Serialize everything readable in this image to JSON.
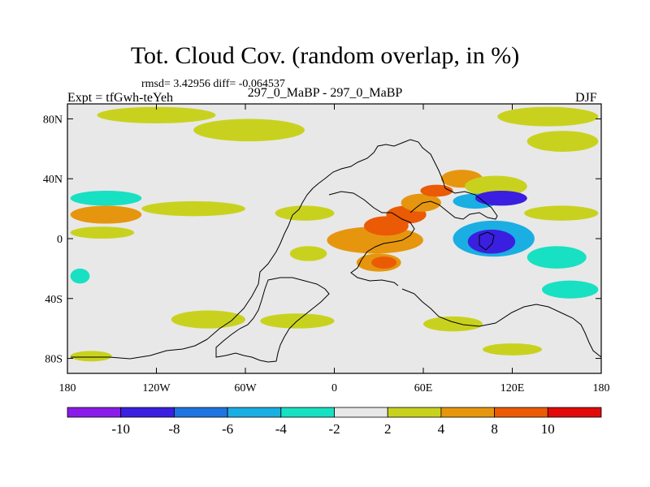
{
  "figure": {
    "title": "Tot. Cloud Cov. (random overlap, in %)",
    "stats": "rmsd= 3.42956 diff= -0.064537",
    "expt_label": "Expt = tfGwh-teYeh",
    "comparison": "297_0_MaBP - 297_0_MaBP",
    "season": "DJF"
  },
  "chart_data": {
    "type": "heatmap",
    "title": "Tot. Cloud Cov. (random overlap, in %)",
    "units": "%",
    "x_range": [
      -180,
      180
    ],
    "y_range": [
      -90,
      90
    ],
    "x_ticks": [
      {
        "value": -180,
        "label": "180"
      },
      {
        "value": -120,
        "label": "120W"
      },
      {
        "value": -60,
        "label": "60W"
      },
      {
        "value": 0,
        "label": "0"
      },
      {
        "value": 60,
        "label": "60E"
      },
      {
        "value": 120,
        "label": "120E"
      },
      {
        "value": 180,
        "label": "180"
      }
    ],
    "y_ticks": [
      {
        "value": 80,
        "label": "80N"
      },
      {
        "value": 40,
        "label": "40N"
      },
      {
        "value": 0,
        "label": "0"
      },
      {
        "value": -40,
        "label": "40S"
      },
      {
        "value": -80,
        "label": "80S"
      }
    ],
    "colorbar": {
      "levels": [
        -10,
        -8,
        -6,
        -4,
        -2,
        2,
        4,
        8,
        10
      ],
      "labels": [
        "-10",
        "-8",
        "-6",
        "-4",
        "-2",
        "2",
        "4",
        "8",
        "10"
      ],
      "colors": [
        "#8a1be8",
        "#3a1fe0",
        "#1f74e0",
        "#1aaee3",
        "#18e0c2",
        "#e8e8e8",
        "#c8d21e",
        "#e6960e",
        "#eb5a05",
        "#e10a0a"
      ]
    },
    "regions": [
      {
        "lon": [
          -160,
          -80
        ],
        "lat": [
          77,
          88
        ],
        "value": 3
      },
      {
        "lon": [
          -95,
          -20
        ],
        "lat": [
          65,
          80
        ],
        "value": 3
      },
      {
        "lon": [
          110,
          178
        ],
        "lat": [
          75,
          88
        ],
        "value": 3
      },
      {
        "lon": [
          130,
          178
        ],
        "lat": [
          58,
          72
        ],
        "value": 3
      },
      {
        "lon": [
          -178,
          -130
        ],
        "lat": [
          22,
          32
        ],
        "value": -3
      },
      {
        "lon": [
          -178,
          -130
        ],
        "lat": [
          10,
          22
        ],
        "value": 6
      },
      {
        "lon": [
          -178,
          -135
        ],
        "lat": [
          0,
          8
        ],
        "value": 3
      },
      {
        "lon": [
          -130,
          -60
        ],
        "lat": [
          15,
          25
        ],
        "value": 3
      },
      {
        "lon": [
          -40,
          0
        ],
        "lat": [
          12,
          22
        ],
        "value": 3
      },
      {
        "lon": [
          -5,
          60
        ],
        "lat": [
          -10,
          8
        ],
        "value": 6
      },
      {
        "lon": [
          20,
          50
        ],
        "lat": [
          2,
          15
        ],
        "value": 9
      },
      {
        "lon": [
          35,
          62
        ],
        "lat": [
          10,
          22
        ],
        "value": 9
      },
      {
        "lon": [
          45,
          72
        ],
        "lat": [
          18,
          30
        ],
        "value": 6
      },
      {
        "lon": [
          72,
          100
        ],
        "lat": [
          34,
          46
        ],
        "value": 6
      },
      {
        "lon": [
          58,
          80
        ],
        "lat": [
          28,
          36
        ],
        "value": 9
      },
      {
        "lon": [
          88,
          130
        ],
        "lat": [
          28,
          42
        ],
        "value": 3
      },
      {
        "lon": [
          80,
          110
        ],
        "lat": [
          20,
          30
        ],
        "value": -5
      },
      {
        "lon": [
          95,
          130
        ],
        "lat": [
          22,
          32
        ],
        "value": -9
      },
      {
        "lon": [
          128,
          178
        ],
        "lat": [
          12,
          22
        ],
        "value": 3
      },
      {
        "lon": [
          80,
          135
        ],
        "lat": [
          -12,
          12
        ],
        "value": -5
      },
      {
        "lon": [
          90,
          122
        ],
        "lat": [
          -10,
          6
        ],
        "value": -9
      },
      {
        "lon": [
          130,
          170
        ],
        "lat": [
          -20,
          -5
        ],
        "value": -3
      },
      {
        "lon": [
          -178,
          -165
        ],
        "lat": [
          -30,
          -20
        ],
        "value": -3
      },
      {
        "lon": [
          140,
          178
        ],
        "lat": [
          -40,
          -28
        ],
        "value": -3
      },
      {
        "lon": [
          15,
          45
        ],
        "lat": [
          -22,
          -10
        ],
        "value": 6
      },
      {
        "lon": [
          25,
          42
        ],
        "lat": [
          -20,
          -12
        ],
        "value": 9
      },
      {
        "lon": [
          -30,
          -5
        ],
        "lat": [
          -15,
          -5
        ],
        "value": 3
      },
      {
        "lon": [
          -110,
          -60
        ],
        "lat": [
          -60,
          -48
        ],
        "value": 3
      },
      {
        "lon": [
          -50,
          0
        ],
        "lat": [
          -60,
          -50
        ],
        "value": 3
      },
      {
        "lon": [
          60,
          100
        ],
        "lat": [
          -62,
          -52
        ],
        "value": 3
      },
      {
        "lon": [
          -178,
          -150
        ],
        "lat": [
          -82,
          -75
        ],
        "value": 3
      },
      {
        "lon": [
          100,
          140
        ],
        "lat": [
          -78,
          -70
        ],
        "value": 3
      }
    ]
  }
}
